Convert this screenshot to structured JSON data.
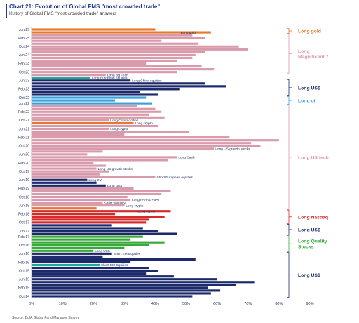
{
  "title": "Chart 21: Evolution of Global FMS \"most crowded trade\"",
  "subtitle": "History of Global FMS \"most crowded trade\" answers",
  "source": "Source: BofA Global Fund Manager Survey",
  "chart_data": {
    "type": "bar",
    "orientation": "horizontal",
    "xlim": [
      0,
      90
    ],
    "x_ticks": [
      "0%",
      "10%",
      "20%",
      "30%",
      "40%",
      "50%",
      "60%",
      "70%",
      "80%",
      "90%"
    ],
    "y_tick_labels": [
      "Jun-25",
      "Feb-25",
      "Oct-24",
      "Jun-24",
      "Feb-24",
      "Oct-23",
      "Jun-23",
      "Feb-23",
      "Oct-22",
      "Jun-22",
      "Feb-22",
      "Oct-21",
      "Jun-21",
      "Feb-21",
      "Oct-20",
      "Jun-20",
      "Feb-20",
      "Oct-19",
      "Jun-19",
      "Feb-19",
      "Oct-18",
      "Jun-18",
      "Feb-18",
      "Oct-17",
      "Jun-17",
      "Feb-17",
      "Oct-16",
      "Jun-16",
      "Feb-16",
      "Oct-15",
      "Jun-15",
      "Feb-15",
      "Oct-14"
    ],
    "colors": {
      "gold": "#e8782e",
      "mag7": "#d99aab",
      "ustech": "#d99aab",
      "usd": "#1c2a6b",
      "oil": "#3aa0dc",
      "nasdaq": "#d42a2a",
      "quality": "#38a83a",
      "other": "#d99aab",
      "crypto": "#e8782e",
      "teal": "#1aa99b"
    },
    "bars": [
      {
        "v": 40,
        "c": "gold"
      },
      {
        "v": 58,
        "c": "gold"
      },
      {
        "v": 52,
        "c": "mag7"
      },
      {
        "v": 56,
        "c": "mag7"
      },
      {
        "v": 42,
        "c": "mag7"
      },
      {
        "v": 54,
        "c": "mag7"
      },
      {
        "v": 67,
        "c": "mag7"
      },
      {
        "v": 70,
        "c": "mag7"
      },
      {
        "v": 56,
        "c": "mag7"
      },
      {
        "v": 53,
        "c": "mag7"
      },
      {
        "v": 52,
        "c": "mag7"
      },
      {
        "v": 47,
        "c": "mag7"
      },
      {
        "v": 37,
        "c": "mag7"
      },
      {
        "v": 55,
        "c": "mag7"
      },
      {
        "v": 59,
        "c": "mag7"
      },
      {
        "v": 47,
        "c": "mag7"
      },
      {
        "v": 24,
        "c": "other"
      },
      {
        "v": 19,
        "c": "teal"
      },
      {
        "v": 32,
        "c": "usd"
      },
      {
        "v": 56,
        "c": "usd"
      },
      {
        "v": 63,
        "c": "usd"
      },
      {
        "v": 48,
        "c": "usd"
      },
      {
        "v": 35,
        "c": "usd"
      },
      {
        "v": 41,
        "c": "usd"
      },
      {
        "v": 37,
        "c": "oil"
      },
      {
        "v": 27,
        "c": "oil"
      },
      {
        "v": 39,
        "c": "oil"
      },
      {
        "v": 34,
        "c": "ustech"
      },
      {
        "v": 40,
        "c": "ustech"
      },
      {
        "v": 42,
        "c": "ustech"
      },
      {
        "v": 38,
        "c": "ustech"
      },
      {
        "v": 43,
        "c": "ustech"
      },
      {
        "v": 25,
        "c": "other"
      },
      {
        "v": 33,
        "c": "crypto"
      },
      {
        "v": 41,
        "c": "ustech"
      },
      {
        "v": 25,
        "c": "other"
      },
      {
        "v": 51,
        "c": "ustech"
      },
      {
        "v": 30,
        "c": "ustech"
      },
      {
        "v": 64,
        "c": "ustech"
      },
      {
        "v": 80,
        "c": "ustech"
      },
      {
        "v": 71,
        "c": "ustech"
      },
      {
        "v": 74,
        "c": "ustech"
      },
      {
        "v": 59,
        "c": "ustech"
      },
      {
        "v": 23,
        "c": "ustech"
      },
      {
        "v": 18,
        "c": "ustech"
      },
      {
        "v": 47,
        "c": "ustech"
      },
      {
        "v": 44,
        "c": "ustech"
      },
      {
        "v": 20,
        "c": "ustech"
      },
      {
        "v": 24,
        "c": "ustech"
      },
      {
        "v": 21,
        "c": "ustech"
      },
      {
        "v": 25,
        "c": "ustech"
      },
      {
        "v": 22,
        "c": "ustech"
      },
      {
        "v": 40,
        "c": "ustech"
      },
      {
        "v": 18,
        "c": "usd"
      },
      {
        "v": 21,
        "c": "usd"
      },
      {
        "v": 24,
        "c": "usd"
      },
      {
        "v": 33,
        "c": "ustech"
      },
      {
        "v": 45,
        "c": "ustech"
      },
      {
        "v": 42,
        "c": "ustech"
      },
      {
        "v": 31,
        "c": "ustech"
      },
      {
        "v": 32,
        "c": "ustech"
      },
      {
        "v": 23,
        "c": "other"
      },
      {
        "v": 30,
        "c": "other"
      },
      {
        "v": 21,
        "c": "crypto"
      },
      {
        "v": 45,
        "c": "nasdaq"
      },
      {
        "v": 27,
        "c": "nasdaq"
      },
      {
        "v": 43,
        "c": "nasdaq"
      },
      {
        "v": 38,
        "c": "nasdaq"
      },
      {
        "v": 37,
        "c": "nasdaq"
      },
      {
        "v": 26,
        "c": "usd"
      },
      {
        "v": 36,
        "c": "usd"
      },
      {
        "v": 41,
        "c": "usd"
      },
      {
        "v": 47,
        "c": "usd"
      },
      {
        "v": 36,
        "c": "quality"
      },
      {
        "v": 32,
        "c": "quality"
      },
      {
        "v": 43,
        "c": "quality"
      },
      {
        "v": 38,
        "c": "quality"
      },
      {
        "v": 30,
        "c": "quality"
      },
      {
        "v": 20,
        "c": "quality"
      },
      {
        "v": 26,
        "c": "usd"
      },
      {
        "v": 23,
        "c": "usd"
      },
      {
        "v": 53,
        "c": "usd"
      },
      {
        "v": 32,
        "c": "usd"
      },
      {
        "v": 22,
        "c": "teal"
      },
      {
        "v": 38,
        "c": "usd"
      },
      {
        "v": 41,
        "c": "usd"
      },
      {
        "v": 37,
        "c": "usd"
      },
      {
        "v": 46,
        "c": "usd"
      },
      {
        "v": 60,
        "c": "usd"
      },
      {
        "v": 72,
        "c": "usd"
      },
      {
        "v": 66,
        "c": "usd"
      },
      {
        "v": 57,
        "c": "usd"
      },
      {
        "v": 61,
        "c": "usd"
      },
      {
        "v": 58,
        "c": "usd"
      },
      {
        "v": 52,
        "c": "usd"
      }
    ],
    "annotations": [
      {
        "bar": 1,
        "text": "Long gold",
        "side": "left"
      },
      {
        "bar": 16,
        "text": "Long big Tech",
        "side": "right"
      },
      {
        "bar": 17,
        "text": "Long European equities",
        "side": "right"
      },
      {
        "bar": 18,
        "text": "Long China equities",
        "side": "right"
      },
      {
        "bar": 32,
        "text": "Long Commodities",
        "side": "right"
      },
      {
        "bar": 33,
        "text": "Long crypto",
        "side": "right"
      },
      {
        "bar": 35,
        "text": "Long crypto",
        "side": "right"
      },
      {
        "bar": 42,
        "text": "Long US growth stocks",
        "side": "right"
      },
      {
        "bar": 45,
        "text": "Long Cash",
        "side": "right"
      },
      {
        "bar": 49,
        "text": "Long US growth stocks",
        "side": "right"
      },
      {
        "bar": 52,
        "text": "Short European equities",
        "side": "right"
      },
      {
        "bar": 53,
        "text": "Long EM",
        "side": "right"
      },
      {
        "bar": 55,
        "text": "Long US$",
        "side": "right"
      },
      {
        "bar": 60,
        "text": "Long FAANG+BAT",
        "side": "right"
      },
      {
        "bar": 61,
        "text": "Short Volatility",
        "side": "right"
      },
      {
        "bar": 62,
        "text": "Long crypto",
        "side": "right"
      },
      {
        "bar": 64,
        "text": "Long crypto",
        "side": "left"
      },
      {
        "bar": 78,
        "text": "Long US$",
        "side": "right"
      },
      {
        "bar": 79,
        "text": "Short EM Equities",
        "side": "right"
      },
      {
        "bar": 83,
        "text": "Short EM Equities",
        "side": "right"
      }
    ],
    "groups": [
      {
        "label": "Long gold",
        "from": 0,
        "to": 1,
        "color": "#e8782e"
      },
      {
        "label": "Long Magnificent 7",
        "from": 2,
        "to": 15,
        "color": "#d99aab"
      },
      {
        "label": "Long US$",
        "from": 18,
        "to": 23,
        "color": "#1c2a6b"
      },
      {
        "label": "Long oil",
        "from": 24,
        "to": 26,
        "color": "#3aa0dc"
      },
      {
        "label": "Long US tech",
        "from": 27,
        "to": 63,
        "color": "#d99aab"
      },
      {
        "label": "Long Nasdaq",
        "from": 64,
        "to": 68,
        "color": "#d42a2a"
      },
      {
        "label": "Long US$",
        "from": 69,
        "to": 72,
        "color": "#1c2a6b"
      },
      {
        "label": "Long Quality Stocks",
        "from": 73,
        "to": 78,
        "color": "#38a83a"
      },
      {
        "label": "Long US$",
        "from": 79,
        "to": 94,
        "color": "#1c2a6b"
      }
    ]
  }
}
